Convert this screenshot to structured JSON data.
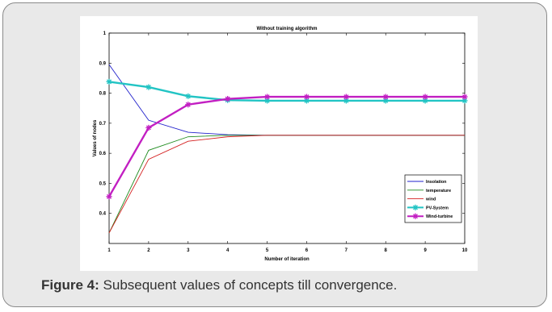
{
  "caption": {
    "label": "Figure 4:",
    "text": " Subsequent values of concepts till convergence."
  },
  "chart_data": {
    "type": "line",
    "title": "Without training algorithm",
    "xlabel": "Number of iteration",
    "ylabel": "Values of nodes",
    "xlim": [
      1,
      10
    ],
    "ylim": [
      0.3,
      1.0
    ],
    "xticks": [
      "1",
      "2",
      "3",
      "4",
      "5",
      "6",
      "7",
      "8",
      "9",
      "10"
    ],
    "yticks": [
      "1",
      "0.9",
      "0.8",
      "0.7",
      "0.6",
      "0.5",
      "0.4"
    ],
    "grid": false,
    "legend_position": "bottom-right",
    "x": [
      1,
      2,
      3,
      4,
      5,
      6,
      7,
      8,
      9,
      10
    ],
    "series": [
      {
        "name": "Insolation",
        "color": "#2222cc",
        "marker": "none",
        "values": [
          0.895,
          0.71,
          0.67,
          0.662,
          0.66,
          0.66,
          0.66,
          0.66,
          0.66,
          0.66
        ]
      },
      {
        "name": "temperature",
        "color": "#1f8c1f",
        "marker": "none",
        "values": [
          0.335,
          0.61,
          0.655,
          0.66,
          0.66,
          0.66,
          0.66,
          0.66,
          0.66,
          0.66
        ]
      },
      {
        "name": "wind",
        "color": "#d42020",
        "marker": "none",
        "values": [
          0.335,
          0.58,
          0.64,
          0.655,
          0.66,
          0.66,
          0.66,
          0.66,
          0.66,
          0.66
        ]
      },
      {
        "name": "PV-System",
        "color": "#22c4c4",
        "marker": "star",
        "values": [
          0.838,
          0.82,
          0.79,
          0.777,
          0.775,
          0.775,
          0.775,
          0.775,
          0.775,
          0.775
        ]
      },
      {
        "name": "Wind-turbine",
        "color": "#c21fc2",
        "marker": "star",
        "values": [
          0.456,
          0.685,
          0.762,
          0.781,
          0.788,
          0.788,
          0.788,
          0.788,
          0.788,
          0.788
        ]
      }
    ]
  }
}
